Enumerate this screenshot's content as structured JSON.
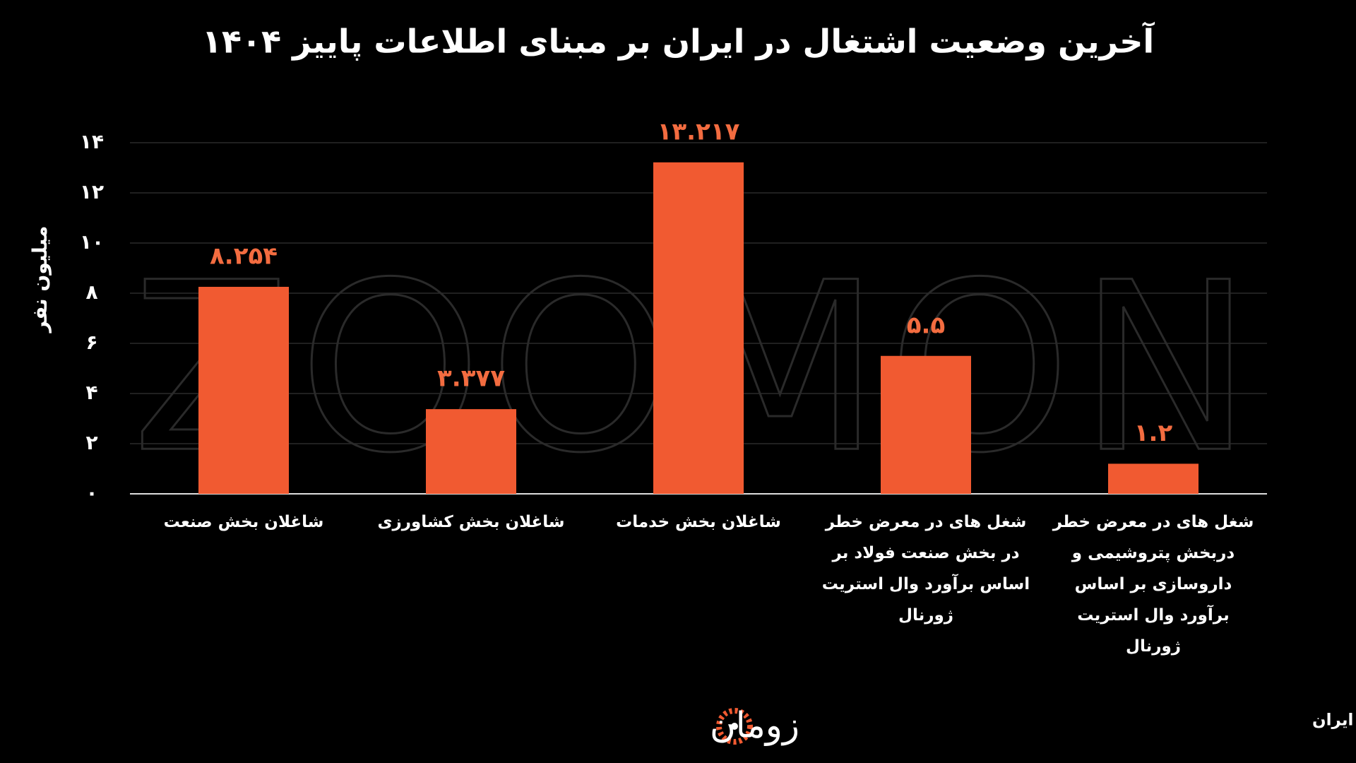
{
  "chart_data": {
    "type": "bar",
    "title": "آخرین وضعیت اشتغال در ایران بر مبنای اطلاعات پاییز ۱۴۰۴",
    "y_label": "میلیون نفر",
    "categories": [
      "شاغلان بخش صنعت",
      "شاغلان بخش کشاورزی",
      "شاغلان بخش خدمات",
      "شغل های در معرض خطر در بخش صنعت فولاد بر اساس برآورد وال استریت ژورنال",
      "شغل های در معرض خطر دربخش پتروشیمی و داروسازی بر اساس برآورد وال استریت ژورنال"
    ],
    "values": [
      8.254,
      3.377,
      13.217,
      5.5,
      1.2
    ],
    "value_labels": [
      "۸.۲۵۴",
      "۳.۳۷۷",
      "۱۳.۲۱۷",
      "۵.۵",
      "۱.۲"
    ],
    "color": "#f15a31",
    "label_color": "#f36c40",
    "ylim": [
      0,
      14
    ],
    "yticks": [
      {
        "value": 0,
        "label": "۰"
      },
      {
        "value": 2,
        "label": "۲"
      },
      {
        "value": 4,
        "label": "۴"
      },
      {
        "value": 6,
        "label": "۶"
      },
      {
        "value": 8,
        "label": "۸"
      },
      {
        "value": 10,
        "label": "۱۰"
      },
      {
        "value": 12,
        "label": "۱۲"
      },
      {
        "value": 14,
        "label": "۱۴"
      }
    ],
    "grid": true,
    "watermark": "ZOOMON",
    "source": "منبع: مرکز آمار ایران",
    "logo": "زومان"
  }
}
